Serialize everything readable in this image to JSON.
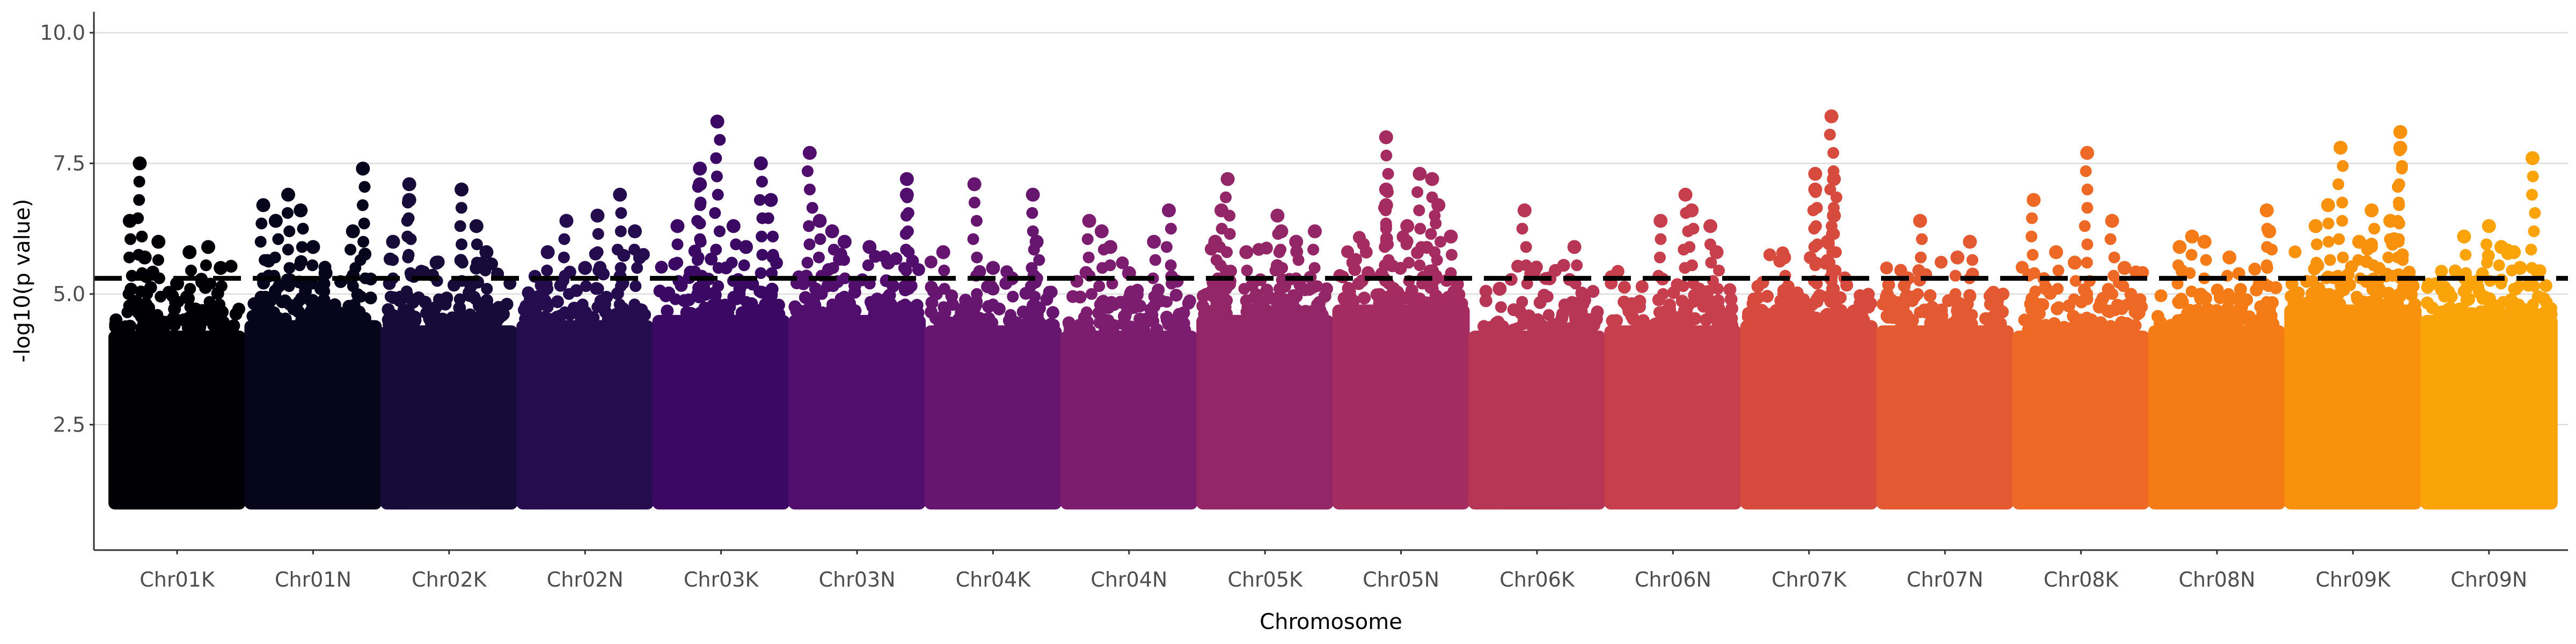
{
  "chart_data": {
    "type": "scatter",
    "subtype": "manhattan",
    "title": "",
    "xlabel": "Chromosome",
    "ylabel": "-log10(p value)",
    "ylim": [
      0.1,
      10.4
    ],
    "y_ticks": [
      2.5,
      5.0,
      7.5,
      10.0
    ],
    "y_tick_labels": [
      "2.5",
      "5.0",
      "7.5",
      "10.0"
    ],
    "grid": "horizontal-major",
    "legend": "none",
    "significance_threshold": 5.3,
    "threshold_style": "dashed black",
    "baseline_min": 1.0,
    "chromosomes": [
      {
        "name": "Chr01K",
        "color": "#000004",
        "body_top": 4.3,
        "peaks": [
          {
            "x": 0.12,
            "y": 6.4
          },
          {
            "x": 0.24,
            "y": 5.7
          },
          {
            "x": 0.2,
            "y": 7.5
          },
          {
            "x": 0.35,
            "y": 6.0
          },
          {
            "x": 0.6,
            "y": 5.8
          },
          {
            "x": 0.75,
            "y": 5.9
          },
          {
            "x": 0.85,
            "y": 5.5
          },
          {
            "x": 0.5,
            "y": 5.2
          }
        ]
      },
      {
        "name": "Chr01N",
        "color": "#07051b",
        "body_top": 4.5,
        "peaks": [
          {
            "x": 0.1,
            "y": 6.7
          },
          {
            "x": 0.2,
            "y": 6.4
          },
          {
            "x": 0.3,
            "y": 6.9
          },
          {
            "x": 0.4,
            "y": 6.6
          },
          {
            "x": 0.6,
            "y": 5.4
          },
          {
            "x": 0.82,
            "y": 6.2
          },
          {
            "x": 0.9,
            "y": 7.4
          },
          {
            "x": 0.5,
            "y": 5.9
          }
        ]
      },
      {
        "name": "Chr02K",
        "color": "#160b39",
        "body_top": 4.4,
        "peaks": [
          {
            "x": 0.05,
            "y": 6.0
          },
          {
            "x": 0.18,
            "y": 7.1
          },
          {
            "x": 0.18,
            "y": 6.8
          },
          {
            "x": 0.6,
            "y": 7.0
          },
          {
            "x": 0.72,
            "y": 6.3
          },
          {
            "x": 0.8,
            "y": 5.8
          },
          {
            "x": 0.4,
            "y": 5.6
          }
        ]
      },
      {
        "name": "Chr02N",
        "color": "#240c4f",
        "body_top": 4.5,
        "peaks": [
          {
            "x": 0.2,
            "y": 5.8
          },
          {
            "x": 0.35,
            "y": 6.4
          },
          {
            "x": 0.6,
            "y": 6.5
          },
          {
            "x": 0.78,
            "y": 6.9
          },
          {
            "x": 0.9,
            "y": 6.2
          },
          {
            "x": 0.5,
            "y": 5.5
          }
        ]
      },
      {
        "name": "Chr03K",
        "color": "#3b0964",
        "body_top": 4.6,
        "peaks": [
          {
            "x": 0.15,
            "y": 6.3
          },
          {
            "x": 0.33,
            "y": 7.4
          },
          {
            "x": 0.33,
            "y": 7.1
          },
          {
            "x": 0.47,
            "y": 8.3
          },
          {
            "x": 0.6,
            "y": 6.3
          },
          {
            "x": 0.82,
            "y": 7.5
          },
          {
            "x": 0.9,
            "y": 6.8
          },
          {
            "x": 0.7,
            "y": 5.9
          }
        ]
      },
      {
        "name": "Chr03N",
        "color": "#510e6c",
        "body_top": 4.6,
        "peaks": [
          {
            "x": 0.12,
            "y": 7.7
          },
          {
            "x": 0.2,
            "y": 6.4
          },
          {
            "x": 0.3,
            "y": 6.2
          },
          {
            "x": 0.4,
            "y": 6.0
          },
          {
            "x": 0.6,
            "y": 5.9
          },
          {
            "x": 0.9,
            "y": 7.2
          },
          {
            "x": 0.9,
            "y": 6.9
          },
          {
            "x": 0.75,
            "y": 5.6
          }
        ]
      },
      {
        "name": "Chr04K",
        "color": "#66166e",
        "body_top": 4.4,
        "peaks": [
          {
            "x": 0.1,
            "y": 5.8
          },
          {
            "x": 0.35,
            "y": 7.1
          },
          {
            "x": 0.5,
            "y": 5.5
          },
          {
            "x": 0.82,
            "y": 6.9
          },
          {
            "x": 0.85,
            "y": 6.0
          },
          {
            "x": 0.65,
            "y": 5.3
          }
        ]
      },
      {
        "name": "Chr04N",
        "color": "#7c1d6f",
        "body_top": 4.3,
        "peaks": [
          {
            "x": 0.18,
            "y": 6.4
          },
          {
            "x": 0.28,
            "y": 6.2
          },
          {
            "x": 0.35,
            "y": 5.9
          },
          {
            "x": 0.7,
            "y": 6.0
          },
          {
            "x": 0.82,
            "y": 6.6
          },
          {
            "x": 0.5,
            "y": 5.4
          }
        ]
      },
      {
        "name": "Chr05K",
        "color": "#932667",
        "body_top": 4.6,
        "peaks": [
          {
            "x": 0.1,
            "y": 6.0
          },
          {
            "x": 0.15,
            "y": 6.6
          },
          {
            "x": 0.2,
            "y": 7.2
          },
          {
            "x": 0.6,
            "y": 6.5
          },
          {
            "x": 0.63,
            "y": 6.2
          },
          {
            "x": 0.9,
            "y": 6.2
          },
          {
            "x": 0.75,
            "y": 6.0
          },
          {
            "x": 0.35,
            "y": 5.8
          }
        ]
      },
      {
        "name": "Chr05N",
        "color": "#a52c60",
        "body_top": 4.8,
        "peaks": [
          {
            "x": 0.38,
            "y": 8.0
          },
          {
            "x": 0.38,
            "y": 7.0
          },
          {
            "x": 0.38,
            "y": 6.7
          },
          {
            "x": 0.65,
            "y": 7.3
          },
          {
            "x": 0.75,
            "y": 7.2
          },
          {
            "x": 0.8,
            "y": 6.7
          },
          {
            "x": 0.9,
            "y": 6.1
          },
          {
            "x": 0.55,
            "y": 6.3
          }
        ]
      },
      {
        "name": "Chr06K",
        "color": "#b83655",
        "body_top": 4.3,
        "peaks": [
          {
            "x": 0.4,
            "y": 6.6
          },
          {
            "x": 0.8,
            "y": 5.9
          },
          {
            "x": 0.6,
            "y": 5.3
          },
          {
            "x": 0.2,
            "y": 5.1
          }
        ]
      },
      {
        "name": "Chr06N",
        "color": "#c73e4c",
        "body_top": 4.4,
        "peaks": [
          {
            "x": 0.4,
            "y": 6.4
          },
          {
            "x": 0.6,
            "y": 6.9
          },
          {
            "x": 0.65,
            "y": 6.6
          },
          {
            "x": 0.8,
            "y": 6.3
          },
          {
            "x": 0.85,
            "y": 5.8
          }
        ]
      },
      {
        "name": "Chr07K",
        "color": "#d74b3f",
        "body_top": 4.5,
        "peaks": [
          {
            "x": 0.55,
            "y": 7.3
          },
          {
            "x": 0.55,
            "y": 7.0
          },
          {
            "x": 0.68,
            "y": 8.4
          },
          {
            "x": 0.7,
            "y": 7.2
          },
          {
            "x": 0.7,
            "y": 6.5
          },
          {
            "x": 0.65,
            "y": 6.0
          },
          {
            "x": 0.3,
            "y": 5.7
          }
        ]
      },
      {
        "name": "Chr07N",
        "color": "#e35932",
        "body_top": 4.4,
        "peaks": [
          {
            "x": 0.3,
            "y": 6.4
          },
          {
            "x": 0.6,
            "y": 5.7
          },
          {
            "x": 0.7,
            "y": 6.0
          },
          {
            "x": 0.2,
            "y": 5.3
          }
        ]
      },
      {
        "name": "Chr08K",
        "color": "#ed6925",
        "body_top": 4.3,
        "peaks": [
          {
            "x": 0.12,
            "y": 6.8
          },
          {
            "x": 0.3,
            "y": 5.8
          },
          {
            "x": 0.55,
            "y": 7.7
          },
          {
            "x": 0.75,
            "y": 6.4
          },
          {
            "x": 0.85,
            "y": 5.5
          },
          {
            "x": 0.45,
            "y": 5.6
          }
        ]
      },
      {
        "name": "Chr08N",
        "color": "#f57b17",
        "body_top": 4.4,
        "peaks": [
          {
            "x": 0.2,
            "y": 5.9
          },
          {
            "x": 0.3,
            "y": 6.1
          },
          {
            "x": 0.4,
            "y": 6.0
          },
          {
            "x": 0.6,
            "y": 5.7
          },
          {
            "x": 0.9,
            "y": 6.6
          },
          {
            "x": 0.92,
            "y": 6.2
          }
        ]
      },
      {
        "name": "Chr09K",
        "color": "#f8910b",
        "body_top": 4.8,
        "peaks": [
          {
            "x": 0.2,
            "y": 6.3
          },
          {
            "x": 0.3,
            "y": 6.7
          },
          {
            "x": 0.4,
            "y": 7.8
          },
          {
            "x": 0.65,
            "y": 6.6
          },
          {
            "x": 0.88,
            "y": 8.1
          },
          {
            "x": 0.88,
            "y": 7.8
          },
          {
            "x": 0.8,
            "y": 6.4
          },
          {
            "x": 0.55,
            "y": 6.0
          }
        ]
      },
      {
        "name": "Chr09N",
        "color": "#fba40a",
        "body_top": 4.6,
        "peaks": [
          {
            "x": 0.3,
            "y": 6.1
          },
          {
            "x": 0.5,
            "y": 6.3
          },
          {
            "x": 0.6,
            "y": 5.9
          },
          {
            "x": 0.7,
            "y": 5.8
          },
          {
            "x": 0.85,
            "y": 7.6
          },
          {
            "x": 0.75,
            "y": 5.5
          }
        ]
      }
    ]
  }
}
